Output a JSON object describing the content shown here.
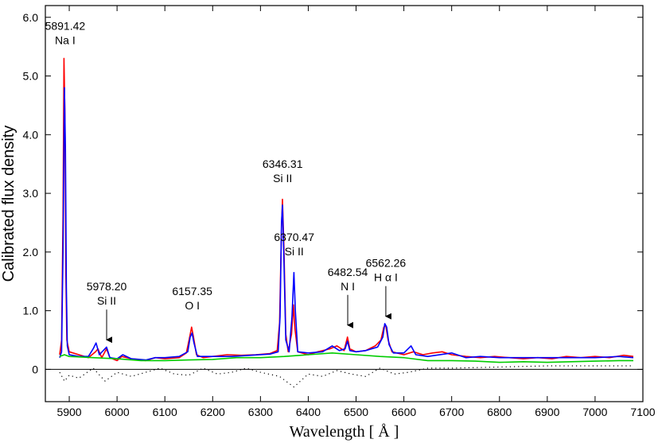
{
  "chart_data": {
    "type": "line",
    "title": "",
    "xlabel": "Wavelength [ Å ]",
    "ylabel": "Calibrated flux density",
    "xlim": [
      5850,
      7100
    ],
    "ylim": [
      -0.55,
      6.2
    ],
    "x_ticks": [
      5900,
      6000,
      6100,
      6200,
      6300,
      6400,
      6500,
      6600,
      6700,
      6800,
      6900,
      7000,
      7100
    ],
    "x_tick_labels": [
      "5900",
      "6000",
      "6100",
      "6200",
      "6300",
      "6400",
      "6500",
      "6600",
      "6700",
      "6800",
      "6900",
      "7000",
      "7100"
    ],
    "y_ticks": [
      0,
      1,
      2,
      3,
      4,
      5,
      6
    ],
    "y_tick_labels": [
      "0",
      "1.0",
      "2.0",
      "3.0",
      "4.0",
      "5.0",
      "6.0"
    ],
    "grid": false,
    "legend": "none",
    "baseline": 0,
    "series": [
      {
        "color": "#ff0000",
        "style": "solid",
        "points": [
          [
            5880,
            0.25
          ],
          [
            5884,
            0.5
          ],
          [
            5887,
            2.6
          ],
          [
            5889,
            5.3
          ],
          [
            5891,
            4.3
          ],
          [
            5893,
            1.6
          ],
          [
            5895,
            0.5
          ],
          [
            5900,
            0.3
          ],
          [
            5920,
            0.25
          ],
          [
            5940,
            0.2
          ],
          [
            5955,
            0.3
          ],
          [
            5960,
            0.35
          ],
          [
            5968,
            0.2
          ],
          [
            5978,
            0.35
          ],
          [
            5985,
            0.2
          ],
          [
            6000,
            0.15
          ],
          [
            6010,
            0.22
          ],
          [
            6030,
            0.18
          ],
          [
            6060,
            0.15
          ],
          [
            6080,
            0.2
          ],
          [
            6100,
            0.18
          ],
          [
            6130,
            0.2
          ],
          [
            6145,
            0.28
          ],
          [
            6152,
            0.55
          ],
          [
            6156,
            0.72
          ],
          [
            6160,
            0.55
          ],
          [
            6166,
            0.25
          ],
          [
            6180,
            0.2
          ],
          [
            6200,
            0.22
          ],
          [
            6230,
            0.25
          ],
          [
            6260,
            0.24
          ],
          [
            6290,
            0.25
          ],
          [
            6320,
            0.27
          ],
          [
            6335,
            0.32
          ],
          [
            6340,
            0.8
          ],
          [
            6344,
            2.4
          ],
          [
            6346,
            2.9
          ],
          [
            6349,
            2.1
          ],
          [
            6353,
            0.6
          ],
          [
            6358,
            0.3
          ],
          [
            6365,
            0.6
          ],
          [
            6369,
            1.1
          ],
          [
            6372,
            0.7
          ],
          [
            6378,
            0.3
          ],
          [
            6400,
            0.25
          ],
          [
            6420,
            0.3
          ],
          [
            6445,
            0.35
          ],
          [
            6460,
            0.4
          ],
          [
            6475,
            0.32
          ],
          [
            6482,
            0.55
          ],
          [
            6487,
            0.35
          ],
          [
            6500,
            0.3
          ],
          [
            6520,
            0.32
          ],
          [
            6540,
            0.4
          ],
          [
            6552,
            0.5
          ],
          [
            6558,
            0.72
          ],
          [
            6562,
            0.75
          ],
          [
            6567,
            0.5
          ],
          [
            6575,
            0.3
          ],
          [
            6600,
            0.25
          ],
          [
            6620,
            0.3
          ],
          [
            6640,
            0.25
          ],
          [
            6660,
            0.28
          ],
          [
            6680,
            0.3
          ],
          [
            6700,
            0.25
          ],
          [
            6730,
            0.22
          ],
          [
            6760,
            0.2
          ],
          [
            6790,
            0.22
          ],
          [
            6820,
            0.2
          ],
          [
            6850,
            0.18
          ],
          [
            6880,
            0.2
          ],
          [
            6910,
            0.18
          ],
          [
            6940,
            0.22
          ],
          [
            6970,
            0.2
          ],
          [
            7000,
            0.22
          ],
          [
            7030,
            0.2
          ],
          [
            7060,
            0.24
          ],
          [
            7080,
            0.22
          ]
        ]
      },
      {
        "color": "#0000ff",
        "style": "solid",
        "points": [
          [
            5880,
            0.2
          ],
          [
            5884,
            0.3
          ],
          [
            5887,
            2.0
          ],
          [
            5890,
            4.8
          ],
          [
            5892,
            3.8
          ],
          [
            5894,
            1.4
          ],
          [
            5896,
            0.4
          ],
          [
            5900,
            0.25
          ],
          [
            5920,
            0.22
          ],
          [
            5940,
            0.22
          ],
          [
            5950,
            0.35
          ],
          [
            5956,
            0.45
          ],
          [
            5963,
            0.25
          ],
          [
            5978,
            0.38
          ],
          [
            5985,
            0.2
          ],
          [
            6000,
            0.18
          ],
          [
            6012,
            0.25
          ],
          [
            6030,
            0.18
          ],
          [
            6060,
            0.16
          ],
          [
            6080,
            0.2
          ],
          [
            6100,
            0.2
          ],
          [
            6130,
            0.22
          ],
          [
            6148,
            0.3
          ],
          [
            6153,
            0.55
          ],
          [
            6157,
            0.62
          ],
          [
            6161,
            0.45
          ],
          [
            6168,
            0.22
          ],
          [
            6200,
            0.22
          ],
          [
            6240,
            0.22
          ],
          [
            6280,
            0.24
          ],
          [
            6320,
            0.26
          ],
          [
            6337,
            0.3
          ],
          [
            6341,
            0.9
          ],
          [
            6344,
            2.5
          ],
          [
            6346,
            2.8
          ],
          [
            6349,
            1.9
          ],
          [
            6353,
            0.5
          ],
          [
            6360,
            0.3
          ],
          [
            6366,
            0.9
          ],
          [
            6370,
            1.65
          ],
          [
            6373,
            1.0
          ],
          [
            6378,
            0.3
          ],
          [
            6400,
            0.28
          ],
          [
            6430,
            0.3
          ],
          [
            6450,
            0.4
          ],
          [
            6465,
            0.32
          ],
          [
            6477,
            0.35
          ],
          [
            6482,
            0.48
          ],
          [
            6487,
            0.32
          ],
          [
            6500,
            0.3
          ],
          [
            6520,
            0.32
          ],
          [
            6545,
            0.38
          ],
          [
            6556,
            0.55
          ],
          [
            6560,
            0.78
          ],
          [
            6564,
            0.72
          ],
          [
            6569,
            0.42
          ],
          [
            6578,
            0.28
          ],
          [
            6600,
            0.28
          ],
          [
            6615,
            0.4
          ],
          [
            6625,
            0.25
          ],
          [
            6650,
            0.22
          ],
          [
            6700,
            0.28
          ],
          [
            6730,
            0.2
          ],
          [
            6760,
            0.22
          ],
          [
            6800,
            0.2
          ],
          [
            6850,
            0.2
          ],
          [
            6900,
            0.2
          ],
          [
            6950,
            0.2
          ],
          [
            7000,
            0.2
          ],
          [
            7050,
            0.22
          ],
          [
            7080,
            0.2
          ]
        ]
      },
      {
        "color": "#00cc00",
        "style": "solid",
        "points": [
          [
            5880,
            0.22
          ],
          [
            5890,
            0.25
          ],
          [
            5900,
            0.22
          ],
          [
            5950,
            0.2
          ],
          [
            6000,
            0.18
          ],
          [
            6050,
            0.15
          ],
          [
            6100,
            0.15
          ],
          [
            6150,
            0.16
          ],
          [
            6200,
            0.17
          ],
          [
            6250,
            0.2
          ],
          [
            6300,
            0.2
          ],
          [
            6350,
            0.22
          ],
          [
            6400,
            0.25
          ],
          [
            6450,
            0.28
          ],
          [
            6500,
            0.25
          ],
          [
            6550,
            0.22
          ],
          [
            6600,
            0.2
          ],
          [
            6650,
            0.15
          ],
          [
            6700,
            0.15
          ],
          [
            6750,
            0.14
          ],
          [
            6800,
            0.12
          ],
          [
            6850,
            0.13
          ],
          [
            6900,
            0.12
          ],
          [
            6950,
            0.13
          ],
          [
            7000,
            0.14
          ],
          [
            7050,
            0.15
          ],
          [
            7080,
            0.15
          ]
        ]
      },
      {
        "color": "#000000",
        "style": "dotted",
        "points": [
          [
            5880,
            -0.05
          ],
          [
            5890,
            -0.2
          ],
          [
            5900,
            -0.1
          ],
          [
            5920,
            -0.15
          ],
          [
            5950,
            0.02
          ],
          [
            5975,
            -0.2
          ],
          [
            6000,
            -0.05
          ],
          [
            6030,
            -0.12
          ],
          [
            6060,
            -0.05
          ],
          [
            6090,
            0.02
          ],
          [
            6120,
            -0.08
          ],
          [
            6150,
            -0.1
          ],
          [
            6180,
            0.02
          ],
          [
            6210,
            -0.08
          ],
          [
            6240,
            -0.05
          ],
          [
            6270,
            0.02
          ],
          [
            6300,
            -0.05
          ],
          [
            6340,
            -0.12
          ],
          [
            6370,
            -0.3
          ],
          [
            6400,
            -0.08
          ],
          [
            6430,
            -0.12
          ],
          [
            6460,
            -0.02
          ],
          [
            6490,
            -0.08
          ],
          [
            6520,
            -0.12
          ],
          [
            6550,
            0.02
          ],
          [
            6580,
            -0.08
          ],
          [
            6610,
            -0.05
          ],
          [
            6650,
            0.02
          ],
          [
            6700,
            0.02
          ],
          [
            6750,
            0.03
          ],
          [
            6800,
            0.04
          ],
          [
            6850,
            0.05
          ],
          [
            6900,
            0.06
          ],
          [
            6950,
            0.06
          ],
          [
            7000,
            0.06
          ],
          [
            7050,
            0.06
          ],
          [
            7080,
            0.06
          ]
        ]
      }
    ],
    "annotations": [
      {
        "wavelength": "5891.42",
        "element": "Na I",
        "x": 5891.42,
        "y": 5.3,
        "arrow": false
      },
      {
        "wavelength": "5978.20",
        "element": "Si II",
        "x": 5978.2,
        "y": 0.45,
        "arrow": true
      },
      {
        "wavelength": "6157.35",
        "element": "O I",
        "x": 6157.35,
        "y": 0.78,
        "arrow": false
      },
      {
        "wavelength": "6346.31",
        "element": "Si II",
        "x": 6346.31,
        "y": 2.95,
        "arrow": false
      },
      {
        "wavelength": "6370.47",
        "element": "Si II",
        "x": 6370.47,
        "y": 1.7,
        "arrow": false
      },
      {
        "wavelength": "6482.54",
        "element": "N I",
        "x": 6482.54,
        "y": 0.7,
        "arrow": true
      },
      {
        "wavelength": "6562.26",
        "element": "H α I",
        "x": 6562.26,
        "y": 0.85,
        "arrow": true
      }
    ]
  }
}
